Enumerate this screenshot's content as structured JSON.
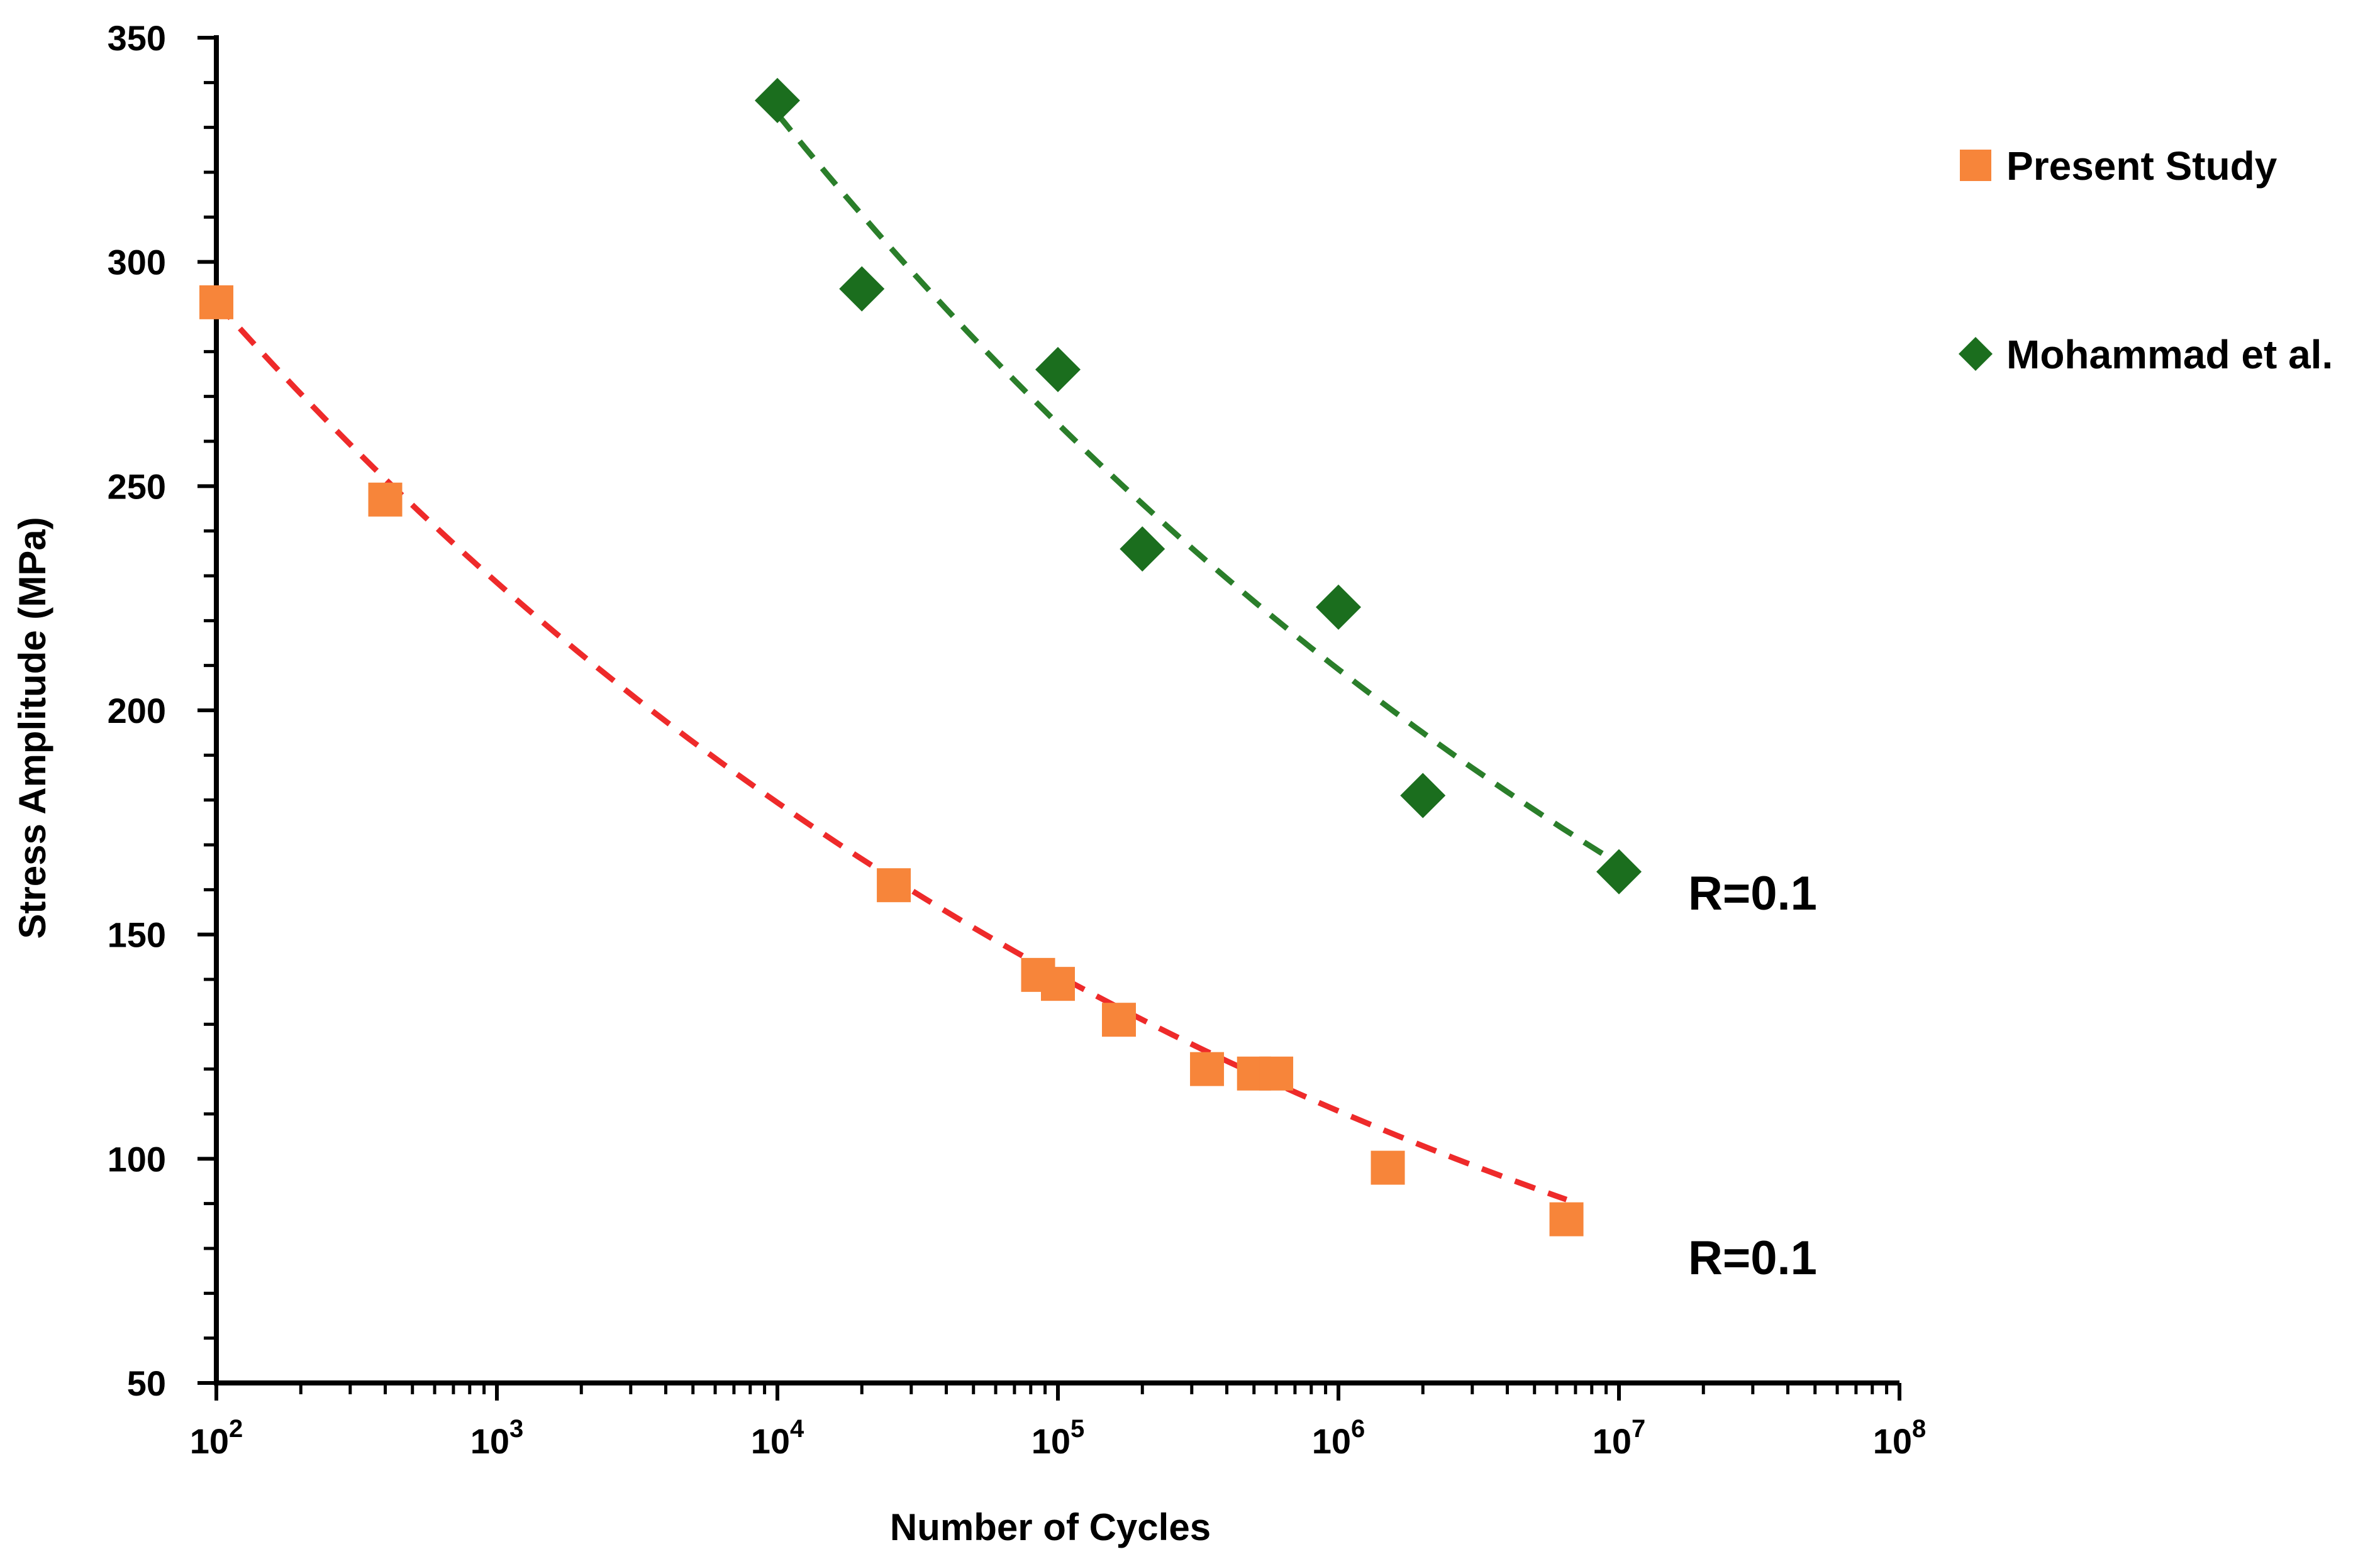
{
  "chart_data": {
    "type": "scatter",
    "title": "",
    "xlabel": "Number of Cycles",
    "ylabel": "Stress Amplitude (MPa)",
    "xscale": "log",
    "xlim": [
      100,
      100000000
    ],
    "ylim": [
      50,
      350
    ],
    "x_ticks": [
      {
        "base": "10",
        "exp": "2"
      },
      {
        "base": "10",
        "exp": "3"
      },
      {
        "base": "10",
        "exp": "4"
      },
      {
        "base": "10",
        "exp": "5"
      },
      {
        "base": "10",
        "exp": "6"
      },
      {
        "base": "10",
        "exp": "7"
      },
      {
        "base": "10",
        "exp": "8"
      }
    ],
    "y_ticks": [
      "50",
      "100",
      "150",
      "200",
      "250",
      "300",
      "350"
    ],
    "legend_position": "top-right",
    "series": [
      {
        "name": "Present Study",
        "marker": "square",
        "color": "#F7853A",
        "trend_color": "#EE2A2A",
        "x": [
          100,
          400,
          26000,
          85000,
          100000,
          165000,
          340000,
          500000,
          600000,
          1500000,
          6500000
        ],
        "y": [
          291,
          247,
          161,
          141,
          139,
          131,
          120,
          119,
          119,
          98,
          86.5
        ]
      },
      {
        "name": "Mohammad et al.",
        "marker": "diamond",
        "color": "#1B6E1E",
        "trend_color": "#2A7E2A",
        "x": [
          10000,
          20000,
          100000,
          200000,
          1000000,
          2000000,
          10000000
        ],
        "y": [
          336,
          294,
          276,
          236,
          223,
          181,
          164
        ]
      }
    ],
    "trendlines": [
      {
        "series": "Present Study",
        "style": "dashed",
        "x_range": [
          100,
          6500000
        ],
        "a": 291,
        "b": -0.105
      },
      {
        "series": "Mohammad et al.",
        "style": "dashed",
        "x_range": [
          10000,
          10000000
        ],
        "a": 333,
        "b": -0.101
      }
    ],
    "annotations": [
      "R=0.1",
      "R=0.1"
    ]
  }
}
